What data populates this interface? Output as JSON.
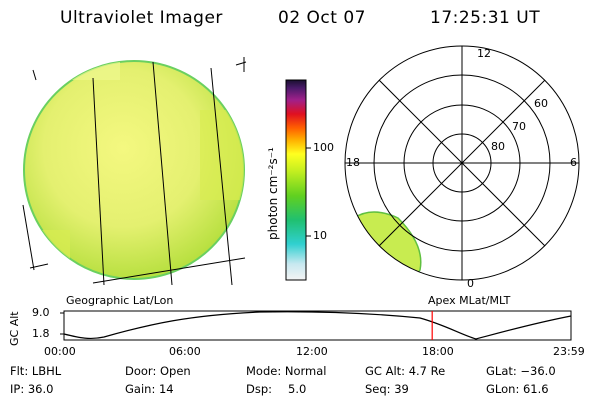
{
  "header": {
    "title": "Ultraviolet Imager",
    "date": "02 Oct 07",
    "time": "17:25:31 UT"
  },
  "colorbar": {
    "label": "photon cm⁻²s⁻¹",
    "ticks": [
      "100",
      "10"
    ],
    "scale": "log"
  },
  "polar_plot": {
    "mlt_labels": [
      "12",
      "18",
      "6",
      "0"
    ],
    "lat_labels": [
      "60",
      "70",
      "80"
    ]
  },
  "footer": {
    "left_label": "Geographic Lat/Lon",
    "right_label": "Apex MLat/MLT"
  },
  "altitude_plot": {
    "ylabel": "GC Alt",
    "yticks": [
      "9.0",
      "1.8"
    ],
    "xticks": [
      "00:00",
      "06:00",
      "12:00",
      "18:00",
      "23:59"
    ],
    "marker_time": "17:25",
    "marker_color": "#ff0000"
  },
  "info": {
    "flt": "Flt: LBHL",
    "ip": "IP: 36.0",
    "door": "Door: Open",
    "gain": "Gain: 14",
    "mode": "Mode: Normal",
    "dsp_label": "Dsp:",
    "dsp_value": "5.0",
    "gcalt": "GC Alt: 4.7 Re",
    "seq": "Seq: 39",
    "glat": "GLat: −36.0",
    "glon": "GLon:  61.6"
  }
}
